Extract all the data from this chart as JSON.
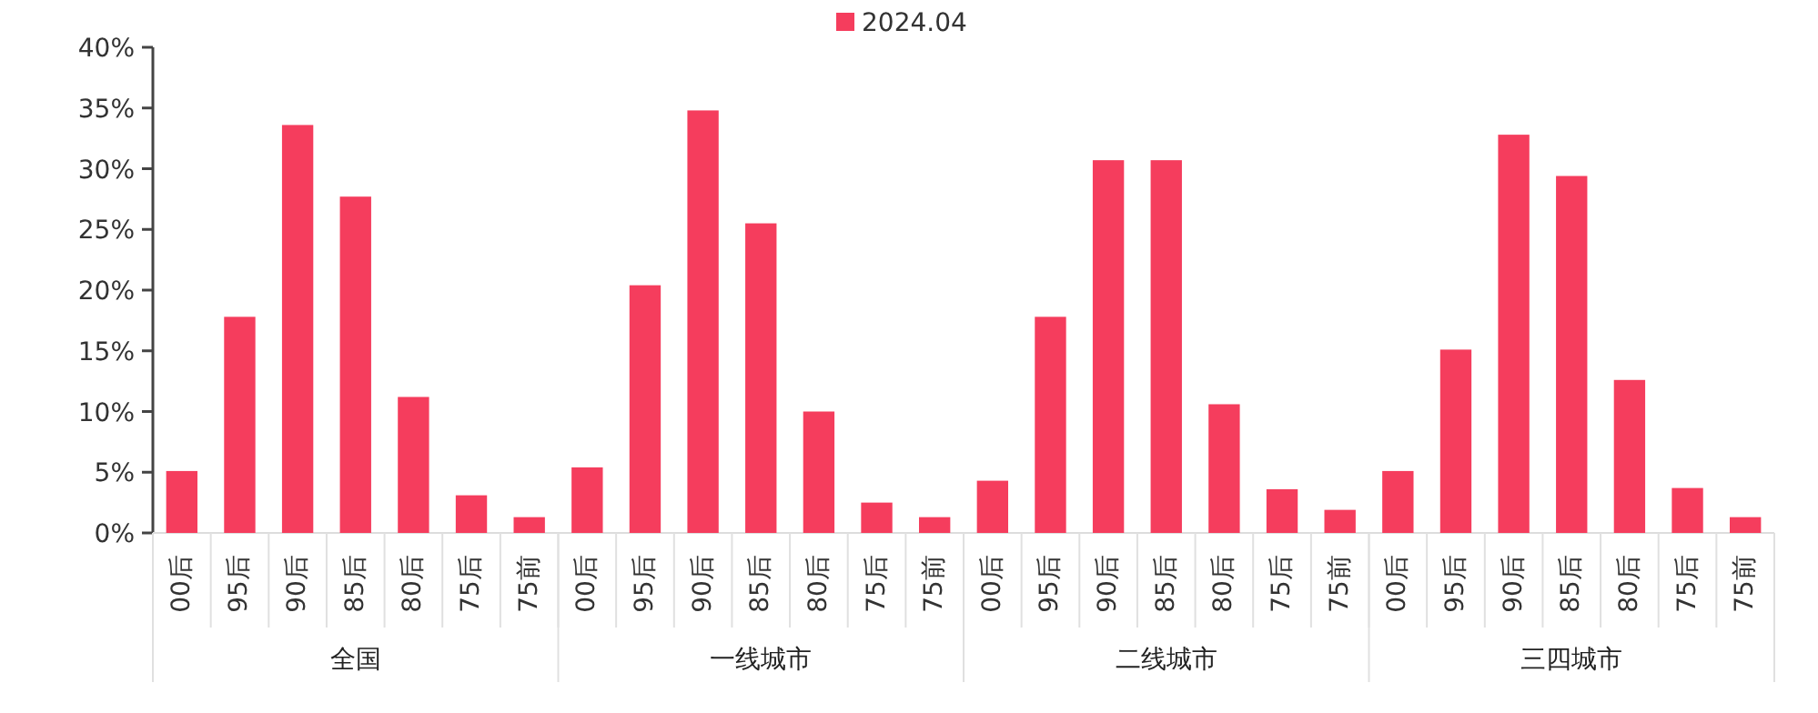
{
  "chart_data": {
    "type": "bar",
    "categories": [
      "00后",
      "95后",
      "90后",
      "85后",
      "80后",
      "75后",
      "75前",
      "00后",
      "95后",
      "90后",
      "85后",
      "80后",
      "75后",
      "75前",
      "00后",
      "95后",
      "90后",
      "85后",
      "80后",
      "75后",
      "75前",
      "00后",
      "95后",
      "90后",
      "85后",
      "80后",
      "75后",
      "75前"
    ],
    "annotations": [
      "全国",
      "一线城市",
      "二线城市",
      "三四城市"
    ],
    "series": [
      {
        "name": "2024.04",
        "color": "#f53d5d",
        "values": [
          5.1,
          17.8,
          33.6,
          27.7,
          11.2,
          3.1,
          1.3,
          5.4,
          20.4,
          34.8,
          25.5,
          10.0,
          2.5,
          1.3,
          4.3,
          17.8,
          30.7,
          30.7,
          10.6,
          3.6,
          1.9,
          5.1,
          15.1,
          32.8,
          29.4,
          12.6,
          3.7,
          1.3
        ]
      }
    ],
    "ylim": [
      0,
      40
    ],
    "yticks": [
      {
        "value": 0,
        "label": "0%"
      },
      {
        "value": 5,
        "label": "5%"
      },
      {
        "value": 10,
        "label": "10%"
      },
      {
        "value": 15,
        "label": "15%"
      },
      {
        "value": 20,
        "label": "20%"
      },
      {
        "value": 25,
        "label": "25%"
      },
      {
        "value": 30,
        "label": "30%"
      },
      {
        "value": 35,
        "label": "35%"
      },
      {
        "value": 40,
        "label": "40%"
      }
    ],
    "legend": "top"
  }
}
